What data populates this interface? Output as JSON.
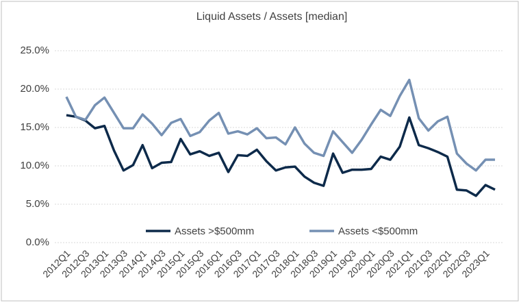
{
  "chart_data": {
    "type": "line",
    "title": "Liquid Assets / Assets [median]",
    "categories": [
      "2012Q1",
      null,
      "2012Q3",
      null,
      "2013Q1",
      null,
      "2013Q3",
      null,
      "2014Q1",
      null,
      "2014Q3",
      null,
      "2015Q1",
      null,
      "2015Q3",
      null,
      "2016Q1",
      null,
      "2016Q3",
      null,
      "2017Q1",
      null,
      "2017Q3",
      null,
      "2018Q1",
      null,
      "2018Q3",
      null,
      "2019Q1",
      null,
      "2019Q3",
      null,
      "2020Q1",
      null,
      "2020Q3",
      null,
      "2021Q1",
      null,
      "2021Q3",
      null,
      "2022Q1",
      null,
      "2022Q3",
      null,
      "2023Q1",
      null
    ],
    "series": [
      {
        "name": "Assets >$500mm",
        "color": "#0d2a4a",
        "values": [
          16.6,
          16.4,
          15.9,
          14.9,
          15.2,
          12.0,
          9.4,
          10.1,
          12.7,
          9.7,
          10.4,
          10.5,
          13.5,
          11.5,
          11.9,
          11.3,
          11.7,
          9.2,
          11.4,
          11.3,
          12.1,
          10.6,
          9.4,
          9.8,
          9.9,
          8.6,
          7.8,
          7.4,
          11.6,
          9.1,
          9.5,
          9.5,
          9.6,
          11.2,
          10.8,
          12.5,
          16.3,
          12.7,
          12.3,
          11.8,
          11.2,
          6.9,
          6.8,
          6.1,
          7.5,
          6.9
        ]
      },
      {
        "name": "Assets <$500mm",
        "color": "#7590b3",
        "values": [
          19.0,
          16.4,
          16.0,
          17.9,
          18.9,
          16.9,
          14.9,
          14.9,
          16.7,
          15.5,
          14.0,
          15.6,
          16.1,
          13.9,
          14.4,
          15.9,
          16.9,
          14.2,
          14.5,
          14.1,
          14.9,
          13.6,
          13.7,
          12.8,
          15.0,
          12.9,
          11.7,
          11.3,
          14.5,
          13.1,
          11.7,
          13.4,
          15.4,
          17.3,
          16.5,
          19.1,
          21.2,
          16.2,
          14.6,
          15.8,
          16.4,
          11.6,
          10.3,
          9.4,
          10.8,
          10.8
        ]
      }
    ],
    "ylim": [
      0,
      25
    ],
    "yticks": [
      {
        "value": 0,
        "label": "0.0%"
      },
      {
        "value": 5,
        "label": "5.0%"
      },
      {
        "value": 10,
        "label": "10.0%"
      },
      {
        "value": 15,
        "label": "15.0%"
      },
      {
        "value": 20,
        "label": "20.0%"
      },
      {
        "value": 25,
        "label": "25.0%"
      }
    ],
    "grid": true,
    "legend": "bottom"
  }
}
